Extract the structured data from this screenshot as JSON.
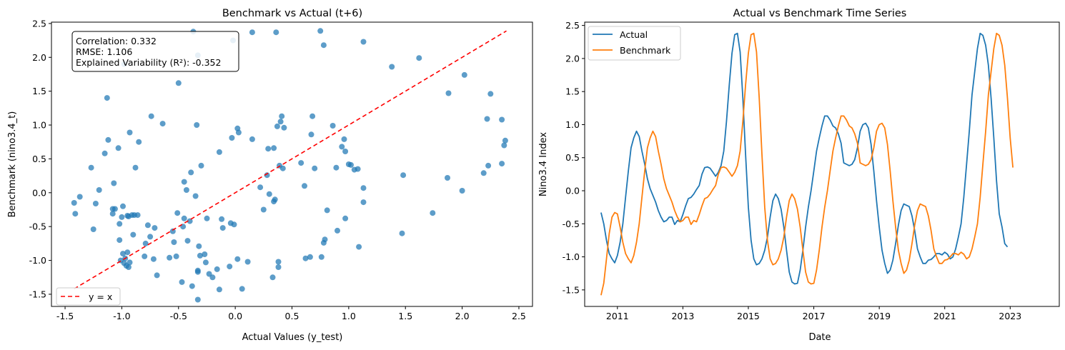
{
  "chart_data": [
    {
      "type": "scatter",
      "title": "Benchmark vs Actual (t+6)",
      "xlabel": "Actual Values (y_test)",
      "ylabel": "Benchmark (nino3.4_t)",
      "xlim": [
        -1.62,
        2.62
      ],
      "ylim": [
        -1.68,
        2.52
      ],
      "xticks": [
        "-1.5",
        "-1.0",
        "-0.5",
        "0.0",
        "0.5",
        "1.0",
        "1.5",
        "2.0",
        "2.5"
      ],
      "yticks": [
        "-1.5",
        "-1.0",
        "-0.5",
        "0.0",
        "0.5",
        "1.0",
        "1.5",
        "2.0",
        "2.5"
      ],
      "grid": false,
      "legend_position": "lower-left",
      "annotation": [
        "Correlation: 0.332",
        "RMSE: 1.106",
        "Explained Variability (R²): -0.352"
      ],
      "colors": {
        "points": "#1f77b4",
        "reference_line": "#ff0000"
      },
      "series": [
        {
          "name": "",
          "points": [
            [
              -1.42,
              -0.15
            ],
            [
              -1.41,
              -0.31
            ],
            [
              -1.37,
              -0.06
            ],
            [
              -1.27,
              0.37
            ],
            [
              -1.25,
              -0.54
            ],
            [
              -1.23,
              -0.16
            ],
            [
              -1.2,
              0.04
            ],
            [
              -1.15,
              0.58
            ],
            [
              -1.13,
              1.4
            ],
            [
              -1.12,
              0.78
            ],
            [
              -1.08,
              -0.24
            ],
            [
              -1.08,
              -0.31
            ],
            [
              -1.07,
              0.14
            ],
            [
              -1.06,
              -0.24
            ],
            [
              -1.03,
              0.66
            ],
            [
              -1.02,
              -0.46
            ],
            [
              -1.02,
              -0.7
            ],
            [
              -1.01,
              -1.0
            ],
            [
              -1.0,
              -0.36
            ],
            [
              -0.99,
              -0.2
            ],
            [
              -0.99,
              -0.9
            ],
            [
              -0.98,
              -1.04
            ],
            [
              -0.97,
              -0.97
            ],
            [
              -0.96,
              -1.08
            ],
            [
              -0.95,
              -0.88
            ],
            [
              -0.95,
              -0.34
            ],
            [
              -0.94,
              -1.1
            ],
            [
              -0.94,
              -0.35
            ],
            [
              -0.93,
              0.89
            ],
            [
              -0.93,
              -1.03
            ],
            [
              -0.91,
              -0.33
            ],
            [
              -0.9,
              -0.62
            ],
            [
              -0.89,
              -0.33
            ],
            [
              -0.88,
              0.37
            ],
            [
              -0.86,
              -0.33
            ],
            [
              -0.85,
              0.75
            ],
            [
              -0.8,
              -0.94
            ],
            [
              -0.79,
              -0.75
            ],
            [
              -0.77,
              -0.48
            ],
            [
              -0.75,
              -0.65
            ],
            [
              -0.74,
              1.13
            ],
            [
              -0.72,
              -0.98
            ],
            [
              -0.71,
              -0.52
            ],
            [
              -0.69,
              -1.22
            ],
            [
              -0.64,
              1.02
            ],
            [
              -0.58,
              -0.96
            ],
            [
              -0.55,
              -0.57
            ],
            [
              -0.54,
              -0.73
            ],
            [
              -0.52,
              -0.94
            ],
            [
              -0.51,
              -0.3
            ],
            [
              -0.5,
              1.62
            ],
            [
              -0.47,
              -1.32
            ],
            [
              -0.46,
              -0.5
            ],
            [
              -0.45,
              0.16
            ],
            [
              -0.45,
              -0.38
            ],
            [
              -0.43,
              0.04
            ],
            [
              -0.42,
              -0.71
            ],
            [
              -0.4,
              -0.42
            ],
            [
              -0.39,
              0.3
            ],
            [
              -0.38,
              -1.38
            ],
            [
              -0.37,
              2.38
            ],
            [
              -0.35,
              -0.05
            ],
            [
              -0.34,
              1.0
            ],
            [
              -0.33,
              -1.15
            ],
            [
              -0.33,
              -1.17
            ],
            [
              -0.33,
              -1.58
            ],
            [
              -0.32,
              -0.79
            ],
            [
              -0.31,
              -0.93
            ],
            [
              -0.3,
              0.4
            ],
            [
              -0.27,
              -0.91
            ],
            [
              -0.26,
              -1.03
            ],
            [
              -0.25,
              -0.38
            ],
            [
              -0.23,
              -1.2
            ],
            [
              -0.2,
              -1.25
            ],
            [
              -0.16,
              -1.13
            ],
            [
              -0.14,
              -1.43
            ],
            [
              -0.14,
              0.6
            ],
            [
              -0.12,
              -0.39
            ],
            [
              -0.11,
              -0.52
            ],
            [
              -0.05,
              -1.09
            ],
            [
              -0.04,
              -0.45
            ],
            [
              -0.03,
              0.81
            ],
            [
              -0.01,
              -0.47
            ],
            [
              0.02,
              0.95
            ],
            [
              0.02,
              -0.98
            ],
            [
              0.03,
              0.89
            ],
            [
              0.06,
              -1.42
            ],
            [
              0.11,
              -1.02
            ],
            [
              0.15,
              0.79
            ],
            [
              0.22,
              0.08
            ],
            [
              0.25,
              -0.25
            ],
            [
              0.28,
              0.26
            ],
            [
              0.29,
              0.65
            ],
            [
              0.3,
              -0.02
            ],
            [
              0.33,
              -1.25
            ],
            [
              0.34,
              0.66
            ],
            [
              0.34,
              -0.13
            ],
            [
              0.35,
              -0.1
            ],
            [
              0.37,
              0.98
            ],
            [
              0.38,
              -1.02
            ],
            [
              0.38,
              -1.1
            ],
            [
              0.39,
              0.4
            ],
            [
              0.4,
              1.05
            ],
            [
              0.41,
              1.13
            ],
            [
              0.43,
              0.96
            ],
            [
              0.42,
              0.36
            ],
            [
              0.58,
              0.44
            ],
            [
              0.61,
              0.1
            ],
            [
              0.62,
              -0.97
            ],
            [
              0.66,
              -0.95
            ],
            [
              0.67,
              0.86
            ],
            [
              0.68,
              1.13
            ],
            [
              0.7,
              0.36
            ],
            [
              0.76,
              -0.95
            ],
            [
              0.78,
              -0.74
            ],
            [
              0.79,
              -0.69
            ],
            [
              0.81,
              -0.26
            ],
            [
              0.86,
              0.99
            ],
            [
              0.89,
              0.37
            ],
            [
              0.9,
              -0.56
            ],
            [
              0.94,
              0.68
            ],
            [
              0.96,
              0.79
            ],
            [
              0.97,
              -0.38
            ],
            [
              0.97,
              0.61
            ],
            [
              1.0,
              0.42
            ],
            [
              1.02,
              0.41
            ],
            [
              1.05,
              0.34
            ],
            [
              1.08,
              0.35
            ],
            [
              1.09,
              -0.8
            ],
            [
              1.13,
              0.07
            ],
            [
              1.13,
              -0.14
            ],
            [
              1.38,
              1.86
            ],
            [
              1.47,
              -0.6
            ],
            [
              1.48,
              0.26
            ],
            [
              1.62,
              1.99
            ],
            [
              1.74,
              -0.3
            ],
            [
              1.87,
              0.22
            ],
            [
              1.88,
              1.47
            ],
            [
              2.0,
              0.03
            ],
            [
              2.02,
              1.74
            ],
            [
              2.19,
              0.29
            ],
            [
              2.22,
              1.09
            ],
            [
              2.23,
              0.4
            ],
            [
              2.25,
              1.46
            ],
            [
              2.35,
              1.08
            ],
            [
              2.35,
              0.43
            ],
            [
              2.37,
              0.7
            ],
            [
              2.38,
              0.77
            ],
            [
              -0.98,
              1.9
            ],
            [
              -0.33,
              2.03
            ],
            [
              -0.02,
              2.25
            ],
            [
              0.15,
              2.37
            ],
            [
              0.36,
              2.37
            ],
            [
              0.75,
              2.39
            ],
            [
              0.78,
              2.18
            ],
            [
              1.13,
              2.23
            ]
          ]
        },
        {
          "name": "y = x",
          "points": [
            [
              -1.42,
              -1.42
            ],
            [
              2.39,
              2.39
            ]
          ]
        }
      ]
    },
    {
      "type": "line",
      "title": "Actual vs Benchmark Time Series",
      "xlabel": "Date",
      "ylabel": "Nino3.4 Index",
      "x_start": "2010-07",
      "x_end": "2023-12",
      "x_frequency": "monthly",
      "xlim": [
        "2010-01",
        "2024-07"
      ],
      "ylim": [
        -1.75,
        2.55
      ],
      "xticks": [
        "2011",
        "2013",
        "2015",
        "2017",
        "2019",
        "2021",
        "2023"
      ],
      "yticks": [
        "-1.5",
        "-1.0",
        "-0.5",
        "0.0",
        "0.5",
        "1.0",
        "1.5",
        "2.0",
        "2.5"
      ],
      "grid": false,
      "legend_position": "top-left",
      "colors": {
        "Actual": "#1f77b4",
        "Benchmark": "#ff7f0e"
      },
      "series": [
        {
          "name": "Actual",
          "values": [
            -0.33,
            -0.5,
            -0.75,
            -0.95,
            -1.03,
            -1.09,
            -0.98,
            -0.78,
            -0.5,
            -0.1,
            0.3,
            0.65,
            0.8,
            0.9,
            0.82,
            0.6,
            0.4,
            0.18,
            0.03,
            -0.07,
            -0.17,
            -0.3,
            -0.4,
            -0.47,
            -0.45,
            -0.4,
            -0.4,
            -0.51,
            -0.45,
            -0.47,
            -0.36,
            -0.23,
            -0.12,
            -0.1,
            -0.05,
            0.02,
            0.08,
            0.25,
            0.35,
            0.36,
            0.34,
            0.28,
            0.22,
            0.28,
            0.38,
            0.6,
            1.05,
            1.6,
            2.08,
            2.36,
            2.38,
            2.1,
            1.4,
            0.55,
            -0.25,
            -0.75,
            -1.03,
            -1.12,
            -1.1,
            -1.03,
            -0.9,
            -0.7,
            -0.4,
            -0.15,
            -0.05,
            -0.12,
            -0.28,
            -0.55,
            -0.9,
            -1.23,
            -1.38,
            -1.41,
            -1.4,
            -1.2,
            -0.9,
            -0.55,
            -0.25,
            0.0,
            0.3,
            0.6,
            0.8,
            0.98,
            1.13,
            1.13,
            1.07,
            0.98,
            0.95,
            0.86,
            0.72,
            0.42,
            0.4,
            0.38,
            0.4,
            0.47,
            0.65,
            0.9,
            1.0,
            1.02,
            0.95,
            0.7,
            0.3,
            -0.15,
            -0.55,
            -0.9,
            -1.1,
            -1.25,
            -1.2,
            -1.05,
            -0.8,
            -0.52,
            -0.3,
            -0.2,
            -0.22,
            -0.24,
            -0.38,
            -0.6,
            -0.88,
            -1.0,
            -1.1,
            -1.1,
            -1.05,
            -1.04,
            -1.0,
            -0.95,
            -0.95,
            -0.97,
            -0.93,
            -0.96,
            -1.03,
            -1.0,
            -0.88,
            -0.7,
            -0.5,
            -0.1,
            0.4,
            0.9,
            1.45,
            1.8,
            2.15,
            2.38,
            2.35,
            2.2,
            1.9,
            1.4,
            0.8,
            0.15,
            -0.35,
            -0.55,
            -0.8,
            -0.85
          ]
        },
        {
          "name": "Benchmark",
          "values": [
            -1.58,
            -1.4,
            -1.03,
            -0.65,
            -0.4,
            -0.33,
            -0.35,
            -0.55,
            -0.78,
            -0.95,
            -1.03,
            -1.09,
            -0.98,
            -0.78,
            -0.5,
            -0.1,
            0.3,
            0.65,
            0.8,
            0.9,
            0.82,
            0.6,
            0.4,
            0.18,
            0.03,
            -0.07,
            -0.17,
            -0.3,
            -0.4,
            -0.47,
            -0.45,
            -0.4,
            -0.4,
            -0.51,
            -0.45,
            -0.47,
            -0.36,
            -0.23,
            -0.12,
            -0.1,
            -0.05,
            0.02,
            0.08,
            0.25,
            0.35,
            0.36,
            0.34,
            0.28,
            0.22,
            0.28,
            0.38,
            0.6,
            1.05,
            1.6,
            2.08,
            2.36,
            2.38,
            2.1,
            1.4,
            0.55,
            -0.25,
            -0.75,
            -1.03,
            -1.12,
            -1.1,
            -1.03,
            -0.9,
            -0.7,
            -0.4,
            -0.15,
            -0.05,
            -0.12,
            -0.28,
            -0.55,
            -0.9,
            -1.23,
            -1.38,
            -1.41,
            -1.4,
            -1.2,
            -0.9,
            -0.55,
            -0.25,
            0.0,
            0.3,
            0.6,
            0.8,
            0.98,
            1.13,
            1.13,
            1.07,
            0.98,
            0.95,
            0.86,
            0.72,
            0.42,
            0.4,
            0.38,
            0.4,
            0.47,
            0.65,
            0.9,
            1.0,
            1.02,
            0.95,
            0.7,
            0.3,
            -0.15,
            -0.55,
            -0.9,
            -1.1,
            -1.25,
            -1.2,
            -1.05,
            -0.8,
            -0.52,
            -0.3,
            -0.2,
            -0.22,
            -0.24,
            -0.38,
            -0.6,
            -0.88,
            -1.0,
            -1.1,
            -1.1,
            -1.05,
            -1.04,
            -1.0,
            -0.95,
            -0.95,
            -0.97,
            -0.93,
            -0.96,
            -1.03,
            -1.0,
            -0.88,
            -0.7,
            -0.5,
            -0.1,
            0.4,
            0.9,
            1.45,
            1.8,
            2.15,
            2.38,
            2.35,
            2.2,
            1.9,
            1.4,
            0.8,
            0.35
          ]
        }
      ]
    }
  ]
}
